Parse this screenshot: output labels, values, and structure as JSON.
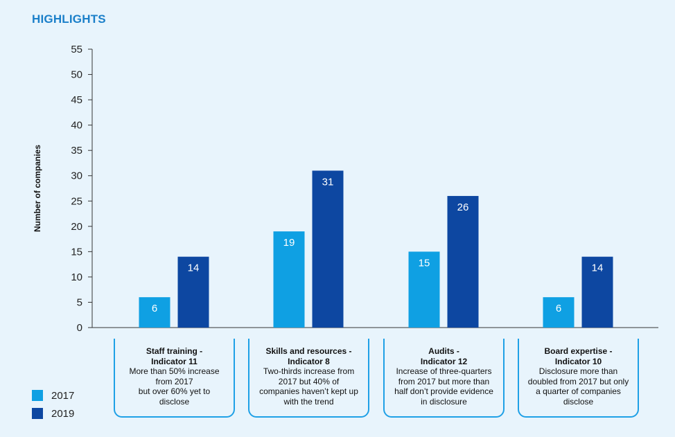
{
  "page": {
    "title": "HIGHLIGHTS"
  },
  "colors": {
    "s2017": "#0fa0e3",
    "s2019": "#0d47a1",
    "box_border": "#1ea0e6",
    "background": "#e8f4fc"
  },
  "chart_data": {
    "type": "bar",
    "ylabel": "Number of companies",
    "ylim": [
      0,
      55
    ],
    "yticks": [
      0,
      5,
      10,
      15,
      20,
      25,
      30,
      35,
      40,
      45,
      50,
      55
    ],
    "categories": [
      {
        "title": "Staff training -\nIndicator 11",
        "description": "More than 50% increase\nfrom 2017\nbut over 60% yet to\ndisclose"
      },
      {
        "title": "Skills and resources -\nIndicator 8",
        "description": "Two-thirds increase from\n2017 but 40% of\ncompanies haven’t kept up\nwith the trend"
      },
      {
        "title": "Audits -\nIndicator 12",
        "description": "Increase of three-quarters\nfrom 2017 but more than\nhalf don’t provide evidence\nin disclosure"
      },
      {
        "title": "Board expertise -\nIndicator 10",
        "description": "Disclosure more than\ndoubled from 2017 but only\na quarter of companies\ndisclose"
      }
    ],
    "series": [
      {
        "name": "2017",
        "values": [
          6,
          19,
          15,
          6
        ]
      },
      {
        "name": "2019",
        "values": [
          14,
          31,
          26,
          14
        ]
      }
    ],
    "legend_position": "bottom-left"
  }
}
